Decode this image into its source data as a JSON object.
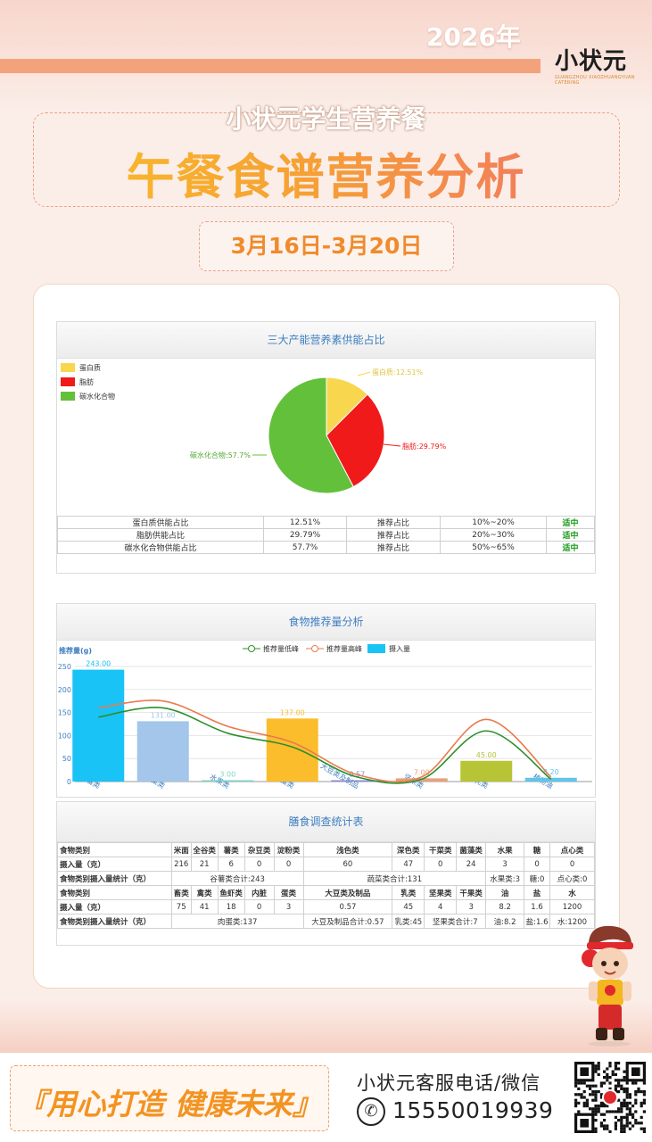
{
  "header": {
    "year": "2026年",
    "logo": "小状元",
    "logo_sub": "GUANGZHOU XIAOZHUANGYUAN CATERING",
    "subtitle": "小状元学生营养餐",
    "title": "午餐食谱营养分析",
    "date_range": "3月16日-3月20日"
  },
  "colors": {
    "protein": "#f8d74f",
    "fat": "#f01a1a",
    "carb": "#63c03a",
    "intake": "#19c3f5",
    "low": "#2c8f2c",
    "high": "#e87b4f"
  },
  "pie_panel": {
    "title": "三大产能营养素供能占比",
    "legend": [
      "蛋白质",
      "脂肪",
      "碳水化合物"
    ],
    "labels": [
      "蛋白质:12.51%",
      "脂肪:29.79%",
      "碳水化合物:57.7%"
    ],
    "rows": [
      {
        "name": "蛋白质供能占比",
        "value": "12.51%",
        "rec_label": "推荐占比",
        "range": "10%~20%",
        "status": "适中"
      },
      {
        "name": "脂肪供能占比",
        "value": "29.79%",
        "rec_label": "推荐占比",
        "range": "20%~30%",
        "status": "适中"
      },
      {
        "name": "碳水化合物供能占比",
        "value": "57.7%",
        "rec_label": "推荐占比",
        "range": "50%~65%",
        "status": "适中"
      }
    ]
  },
  "bar_panel": {
    "title": "食物推荐量分析",
    "legend": [
      "推荐量低峰",
      "推荐量高峰",
      "摄入量"
    ]
  },
  "chart_data": [
    {
      "type": "pie",
      "title": "三大产能营养素供能占比",
      "categories": [
        "蛋白质",
        "脂肪",
        "碳水化合物"
      ],
      "values": [
        12.51,
        29.79,
        57.7
      ]
    },
    {
      "type": "bar",
      "title": "食物推荐量分析",
      "ylabel": "推荐量(g)",
      "ylim": [
        0,
        250
      ],
      "yticks": [
        0,
        50,
        100,
        150,
        200,
        250
      ],
      "categories": [
        "谷薯类",
        "蔬菜类",
        "水果类",
        "肉蛋类",
        "大豆类及制品",
        "坚果类",
        "乳类",
        "植物油"
      ],
      "series": [
        {
          "name": "摄入量",
          "type": "bar",
          "values": [
            243,
            131,
            3,
            137,
            0.57,
            7,
            45,
            8.2
          ],
          "labels": [
            "243.00",
            "131.00",
            "3.00",
            "137.00",
            "0.57",
            "7.00",
            "45.00",
            "8.20"
          ],
          "colors": [
            "#19c3f5",
            "#a3c6ea",
            "#7fd4c8",
            "#fbbd2c",
            "#8a8ad8",
            "#e8a07a",
            "#b7c435",
            "#5fc6e8"
          ]
        },
        {
          "name": "推荐量低峰",
          "type": "line",
          "values": [
            140,
            160,
            105,
            75,
            10,
            5,
            110,
            5
          ]
        },
        {
          "name": "推荐量高峰",
          "type": "line",
          "values": [
            160,
            175,
            120,
            85,
            15,
            10,
            135,
            10
          ]
        }
      ]
    }
  ],
  "stat_panel": {
    "title": "膳食调查统计表",
    "row1_head": [
      "食物类别",
      "米面",
      "全谷类",
      "薯类",
      "杂豆类",
      "淀粉类",
      "浅色类",
      "深色类",
      "干菜类",
      "菌藻类",
      "水果",
      "糖",
      "点心类"
    ],
    "row1_vals": [
      "摄入量（克）",
      "216",
      "21",
      "6",
      "0",
      "0",
      "60",
      "47",
      "0",
      "24",
      "3",
      "0",
      "0"
    ],
    "row1_sum": [
      "食物类别摄入量统计（克）",
      "谷薯类合计:243",
      "蔬菜类合计:131",
      "水果类:3",
      "糖:0",
      "点心类:0"
    ],
    "row2_head": [
      "食物类别",
      "畜类",
      "禽类",
      "鱼虾类",
      "内脏",
      "蛋类",
      "大豆类及制品",
      "乳类",
      "坚果类",
      "干果类",
      "油",
      "盐",
      "水"
    ],
    "row2_vals": [
      "摄入量（克）",
      "75",
      "41",
      "18",
      "0",
      "3",
      "0.57",
      "45",
      "4",
      "3",
      "8.2",
      "1.6",
      "1200"
    ],
    "row2_sum": [
      "食物类别摄入量统计（克）",
      "肉蛋类:137",
      "大豆及制品合计:0.57",
      "乳类:45",
      "坚果类合计:7",
      "油:8.2",
      "盐:1.6",
      "水:1200"
    ]
  },
  "footer": {
    "slogan": "『用心打造 健康未来』",
    "service": "小状元客服电话/微信",
    "phone": "15550019939"
  }
}
